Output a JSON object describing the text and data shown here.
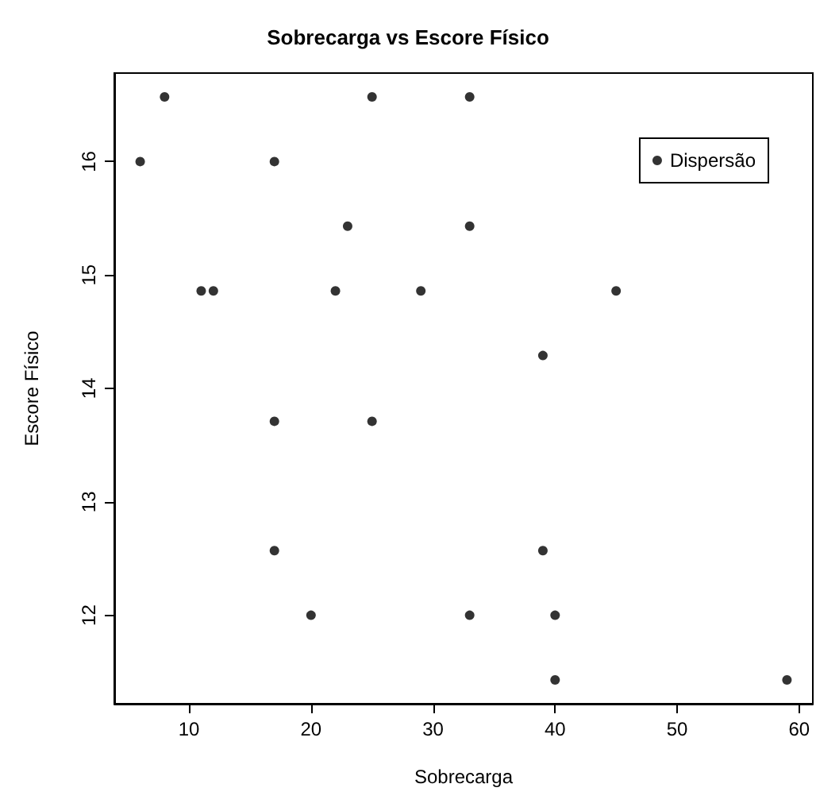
{
  "chart_data": {
    "type": "scatter",
    "title": "Sobrecarga vs Escore Físico",
    "xlabel": "Sobrecarga",
    "ylabel": "Escore Físico",
    "series": [
      {
        "name": "Dispersão",
        "color": "#000000",
        "x": [
          8,
          6,
          25,
          33,
          17,
          23,
          33,
          11,
          12,
          22,
          29,
          45,
          39,
          17,
          25,
          17,
          20,
          33,
          39,
          40,
          40,
          59
        ],
        "values": [
          16.57,
          16,
          16.57,
          16.57,
          16,
          15.43,
          15.43,
          14.86,
          14.86,
          14.86,
          14.86,
          14.86,
          14.29,
          13.71,
          13.71,
          12.57,
          12,
          12,
          12.57,
          12,
          11.43,
          11.43
        ]
      }
    ],
    "xlim": [
      3.88,
      61.12
    ],
    "xticks": [
      10,
      20,
      30,
      40,
      50,
      60
    ],
    "ylim": [
      11.22,
      16.78
    ],
    "yticks": [
      12,
      13,
      14,
      15,
      16
    ],
    "grid": false,
    "legend": "top right",
    "marker": "circle"
  }
}
